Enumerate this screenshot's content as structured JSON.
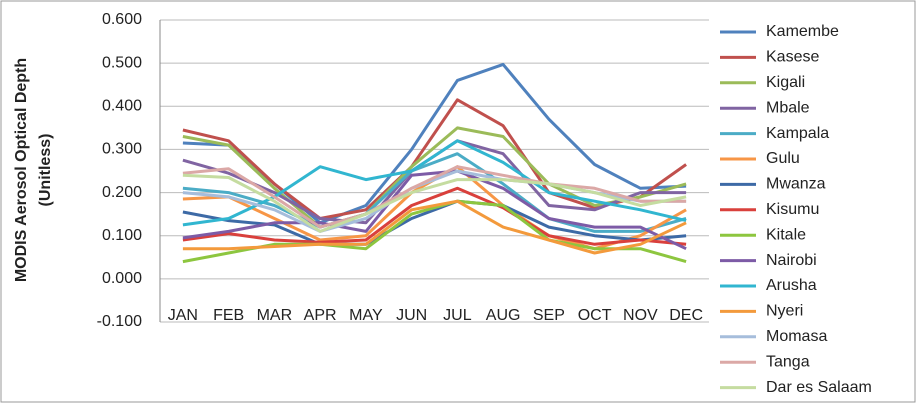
{
  "chart_data": {
    "type": "line",
    "y_label": [
      "MODIS Aerosol Optical Depth",
      "(Unitless)"
    ],
    "categories": [
      "JAN",
      "FEB",
      "MAR",
      "APR",
      "MAY",
      "JUN",
      "JUL",
      "AUG",
      "SEP",
      "OCT",
      "NOV",
      "DEC"
    ],
    "ylim": [
      -0.1,
      0.6
    ],
    "yticks": [
      {
        "value": -0.1,
        "label": "-0.100"
      },
      {
        "value": 0,
        "label": "0.000"
      },
      {
        "value": 0.1,
        "label": "0.100"
      },
      {
        "value": 0.2,
        "label": "0.200"
      },
      {
        "value": 0.3,
        "label": "0.300"
      },
      {
        "value": 0.4,
        "label": "0.400"
      },
      {
        "value": 0.5,
        "label": "0.500"
      },
      {
        "value": 0.6,
        "label": "0.600"
      }
    ],
    "grid": true,
    "legend": "right",
    "series": [
      {
        "name": "Kamembe",
        "color": "#4f81bd",
        "values": [
          0.315,
          0.31,
          0.22,
          0.13,
          0.17,
          0.3,
          0.46,
          0.497,
          0.37,
          0.265,
          0.21,
          0.215
        ]
      },
      {
        "name": "Kasese",
        "color": "#c0504d",
        "values": [
          0.345,
          0.32,
          0.22,
          0.14,
          0.16,
          0.26,
          0.415,
          0.355,
          0.2,
          0.165,
          0.19,
          0.265
        ]
      },
      {
        "name": "Kigali",
        "color": "#9bbb59",
        "values": [
          0.33,
          0.31,
          0.21,
          0.12,
          0.15,
          0.26,
          0.35,
          0.33,
          0.22,
          0.17,
          0.19,
          0.22
        ]
      },
      {
        "name": "Mbale",
        "color": "#8064a2",
        "values": [
          0.275,
          0.245,
          0.2,
          0.14,
          0.13,
          0.25,
          0.32,
          0.29,
          0.17,
          0.16,
          0.2,
          0.2
        ]
      },
      {
        "name": "Kampala",
        "color": "#4bacc6",
        "values": [
          0.21,
          0.2,
          0.17,
          0.12,
          0.15,
          0.25,
          0.29,
          0.22,
          0.14,
          0.11,
          0.11,
          0.14
        ]
      },
      {
        "name": "Gulu",
        "color": "#f79646",
        "values": [
          0.185,
          0.19,
          0.14,
          0.09,
          0.1,
          0.2,
          0.26,
          0.17,
          0.1,
          0.07,
          0.1,
          0.16
        ]
      },
      {
        "name": "Mwanza",
        "color": "#3d6aa6",
        "values": [
          0.155,
          0.135,
          0.125,
          0.08,
          0.08,
          0.14,
          0.18,
          0.17,
          0.12,
          0.1,
          0.09,
          0.1
        ]
      },
      {
        "name": "Kisumu",
        "color": "#d9403c",
        "values": [
          0.09,
          0.105,
          0.09,
          0.085,
          0.09,
          0.17,
          0.21,
          0.165,
          0.1,
          0.08,
          0.09,
          0.08
        ]
      },
      {
        "name": "Kitale",
        "color": "#8dc63f",
        "values": [
          0.04,
          0.06,
          0.08,
          0.08,
          0.07,
          0.15,
          0.18,
          0.17,
          0.09,
          0.07,
          0.07,
          0.04
        ]
      },
      {
        "name": "Nairobi",
        "color": "#7d5ba6",
        "values": [
          0.095,
          0.11,
          0.13,
          0.13,
          0.11,
          0.24,
          0.25,
          0.21,
          0.14,
          0.12,
          0.12,
          0.07
        ]
      },
      {
        "name": "Arusha",
        "color": "#31b6d0",
        "values": [
          0.125,
          0.14,
          0.19,
          0.26,
          0.23,
          0.25,
          0.32,
          0.27,
          0.2,
          0.18,
          0.16,
          0.135
        ]
      },
      {
        "name": "Nyeri",
        "color": "#f39a3c",
        "values": [
          0.07,
          0.07,
          0.075,
          0.08,
          0.08,
          0.16,
          0.18,
          0.12,
          0.09,
          0.06,
          0.08,
          0.13
        ]
      },
      {
        "name": "Momasa",
        "color": "#a6bddb",
        "values": [
          0.2,
          0.19,
          0.16,
          0.11,
          0.14,
          0.21,
          0.25,
          0.23,
          0.22,
          0.2,
          0.18,
          0.18
        ]
      },
      {
        "name": "Tanga",
        "color": "#dba8a6",
        "values": [
          0.245,
          0.255,
          0.19,
          0.12,
          0.15,
          0.21,
          0.26,
          0.24,
          0.22,
          0.21,
          0.18,
          0.18
        ]
      },
      {
        "name": "Dar es Salaam",
        "color": "#c5dca0",
        "values": [
          0.24,
          0.235,
          0.18,
          0.11,
          0.15,
          0.2,
          0.23,
          0.23,
          0.22,
          0.2,
          0.17,
          0.19
        ]
      }
    ]
  }
}
